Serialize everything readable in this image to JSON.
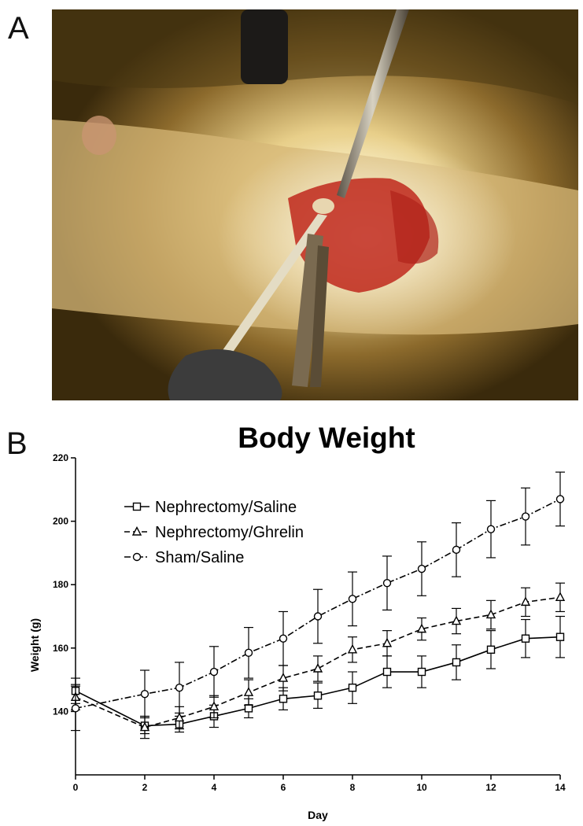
{
  "panels": {
    "a_label": "A",
    "b_label": "B"
  },
  "photo": {
    "subject": "rat-surgery-photo"
  },
  "chart_data": {
    "type": "line",
    "title": "Body Weight",
    "xlabel": "Day",
    "ylabel": "Weight (g)",
    "xlim": [
      0,
      14
    ],
    "ylim": [
      120,
      220
    ],
    "xticks": [
      0,
      2,
      4,
      6,
      8,
      10,
      12,
      14
    ],
    "yticks": [
      140,
      160,
      180,
      200,
      220
    ],
    "grid": false,
    "legend_position": "top-left",
    "series": [
      {
        "name": "Nephrectomy/Saline",
        "marker": "square",
        "dash": "solid",
        "x": [
          0,
          2,
          3,
          4,
          5,
          6,
          7,
          8,
          9,
          10,
          11,
          12,
          13,
          14
        ],
        "y": [
          146.5,
          135.5,
          136,
          138.5,
          141,
          144,
          145,
          147.5,
          152.5,
          152.5,
          155.5,
          159.5,
          163,
          163.5
        ],
        "err": [
          4,
          2.5,
          2.5,
          3.5,
          3,
          3.5,
          4,
          5,
          5,
          5,
          5.5,
          6,
          6,
          6.5
        ]
      },
      {
        "name": "Nephrectomy/Ghrelin",
        "marker": "triangle",
        "dash": "dashed",
        "x": [
          0,
          2,
          3,
          4,
          5,
          6,
          7,
          8,
          9,
          10,
          11,
          12,
          13,
          14
        ],
        "y": [
          144.5,
          135,
          138,
          141.5,
          146,
          150.5,
          153.5,
          159.5,
          161.5,
          166,
          168.5,
          170.5,
          174.5,
          176
        ],
        "err": [
          4,
          3.5,
          3.5,
          3.5,
          4,
          4,
          4,
          4,
          4,
          3.5,
          4,
          4.5,
          4.5,
          4.5
        ]
      },
      {
        "name": "Sham/Saline",
        "marker": "circle",
        "dash": "dashdot",
        "x": [
          0,
          2,
          3,
          4,
          5,
          6,
          7,
          8,
          9,
          10,
          11,
          12,
          13,
          14
        ],
        "y": [
          141,
          145.5,
          147.5,
          152.5,
          158.5,
          163,
          170,
          175.5,
          180.5,
          185,
          191,
          197.5,
          201.5,
          207
        ],
        "err": [
          7,
          7.5,
          8,
          8,
          8,
          8.5,
          8.5,
          8.5,
          8.5,
          8.5,
          8.5,
          9,
          9,
          8.5
        ]
      }
    ]
  }
}
